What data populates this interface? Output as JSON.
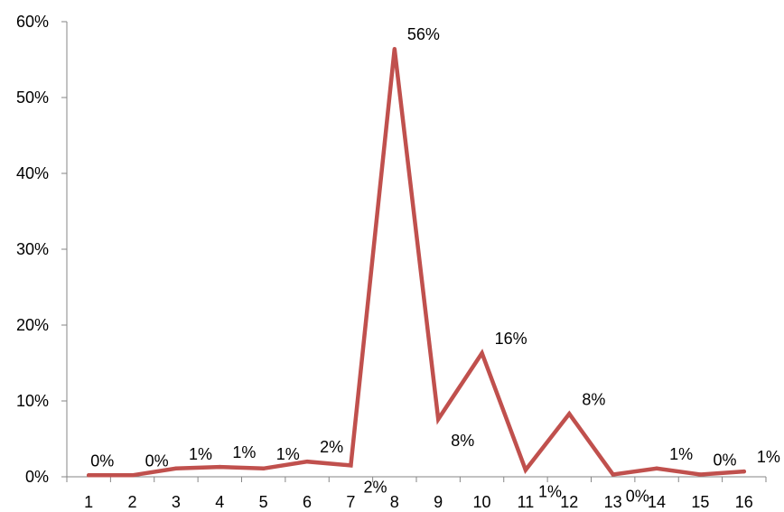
{
  "chart_data": {
    "type": "line",
    "title": "",
    "xlabel": "",
    "ylabel": "",
    "categories": [
      "1",
      "2",
      "3",
      "4",
      "5",
      "6",
      "7",
      "8",
      "9",
      "10",
      "11",
      "12",
      "13",
      "14",
      "15",
      "16"
    ],
    "series": [
      {
        "values": [
          0.2,
          0.2,
          1.1,
          1.3,
          1.1,
          2.0,
          1.5,
          56.4,
          7.6,
          16.3,
          0.9,
          8.3,
          0.3,
          1.1,
          0.3,
          0.7
        ],
        "data_labels": [
          "0%",
          "0%",
          "1%",
          "1%",
          "1%",
          "2%",
          "2%",
          "56%",
          "8%",
          "16%",
          "1%",
          "8%",
          "0%",
          "1%",
          "0%",
          "1%"
        ],
        "color": "#C0504D"
      }
    ],
    "yticks": [
      "0%",
      "10%",
      "20%",
      "30%",
      "40%",
      "50%",
      "60%"
    ],
    "ylim": [
      0,
      60
    ],
    "grid": false,
    "legend": "none"
  }
}
